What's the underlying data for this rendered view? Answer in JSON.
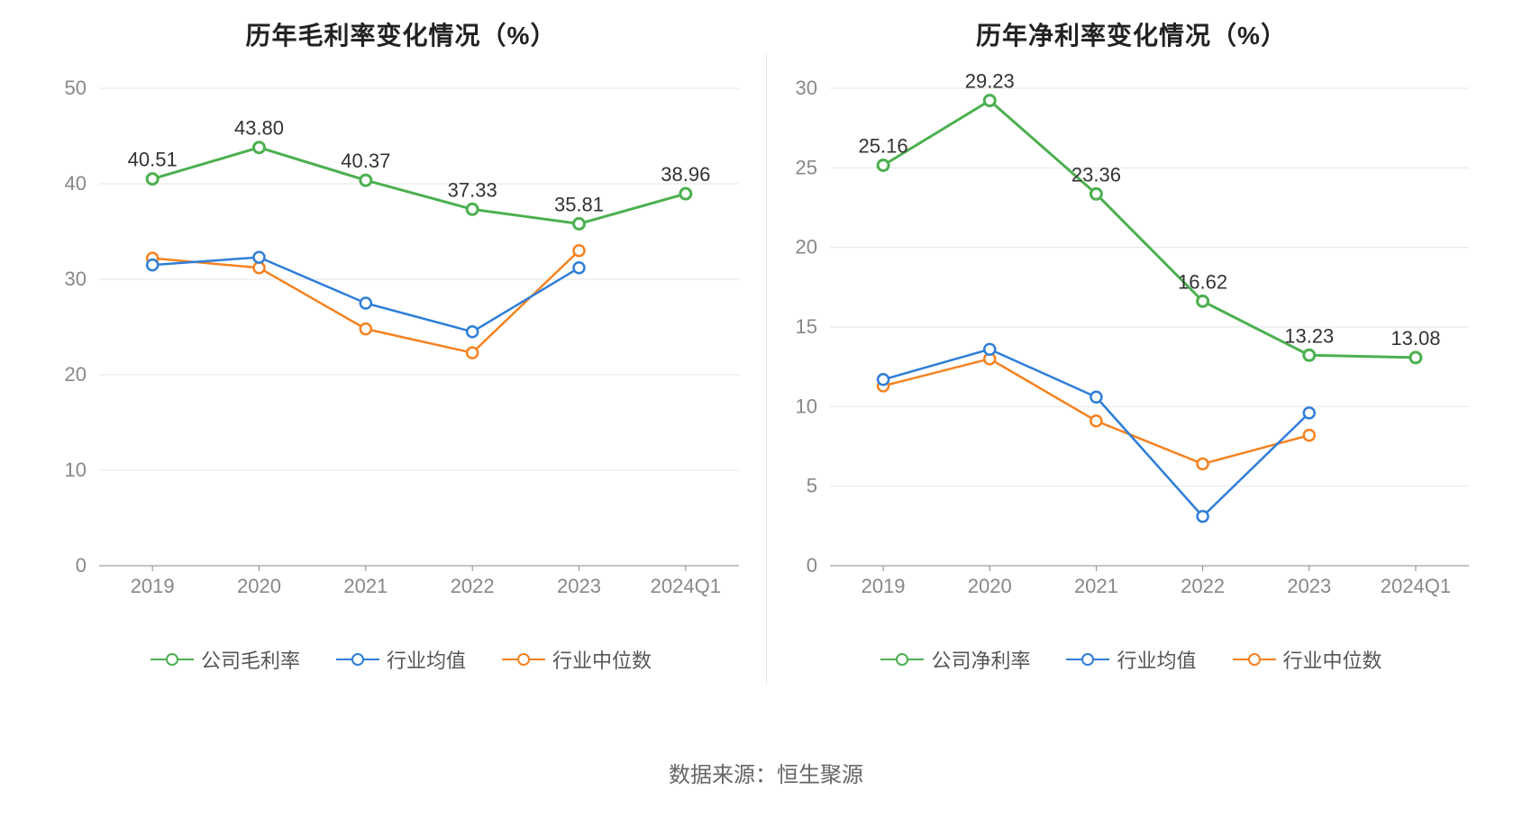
{
  "footer_text": "数据来源：恒生聚源",
  "title_fontsize": 28,
  "axis_label_fontsize": 22,
  "value_label_fontsize": 22,
  "legend_fontsize": 22,
  "grid_color": "#e6e6e6",
  "axis_line_color": "#888888",
  "tick_text_color": "#888888",
  "background_color": "#ffffff",
  "marker_radius": 6,
  "line_width": 2.5,
  "series_colors": {
    "company": "#4cb050",
    "industry_mean": "#2f7ed8",
    "industry_median": "#f58220"
  },
  "series_line_width": {
    "company": 3,
    "industry_mean": 2.5,
    "industry_median": 2.5
  },
  "chart_left": {
    "title": "历年毛利率变化情况（%）",
    "type": "line",
    "categories": [
      "2019",
      "2020",
      "2021",
      "2022",
      "2023",
      "2024Q1"
    ],
    "ymin": 0,
    "ymax": 50,
    "ytick_step": 10,
    "grid": true,
    "legend": [
      {
        "key": "company",
        "label": "公司毛利率"
      },
      {
        "key": "industry_mean",
        "label": "行业均值"
      },
      {
        "key": "industry_median",
        "label": "行业中位数"
      }
    ],
    "series": {
      "company": {
        "values": [
          40.51,
          43.8,
          40.37,
          37.33,
          35.81,
          38.96
        ],
        "show_labels": true
      },
      "industry_mean": {
        "values": [
          31.5,
          32.3,
          27.5,
          24.5,
          31.2,
          null
        ],
        "show_labels": false
      },
      "industry_median": {
        "values": [
          32.2,
          31.2,
          24.8,
          22.3,
          33.0,
          null
        ],
        "show_labels": false
      }
    }
  },
  "chart_right": {
    "title": "历年净利率变化情况（%）",
    "type": "line",
    "categories": [
      "2019",
      "2020",
      "2021",
      "2022",
      "2023",
      "2024Q1"
    ],
    "ymin": 0,
    "ymax": 30,
    "ytick_step": 5,
    "grid": true,
    "legend": [
      {
        "key": "company",
        "label": "公司净利率"
      },
      {
        "key": "industry_mean",
        "label": "行业均值"
      },
      {
        "key": "industry_median",
        "label": "行业中位数"
      }
    ],
    "series": {
      "company": {
        "values": [
          25.16,
          29.23,
          23.36,
          16.62,
          13.23,
          13.08
        ],
        "show_labels": true
      },
      "industry_mean": {
        "values": [
          11.7,
          13.6,
          10.6,
          3.1,
          9.6,
          null
        ],
        "show_labels": false
      },
      "industry_median": {
        "values": [
          11.3,
          13.0,
          9.1,
          6.4,
          8.2,
          null
        ],
        "show_labels": false
      }
    }
  }
}
